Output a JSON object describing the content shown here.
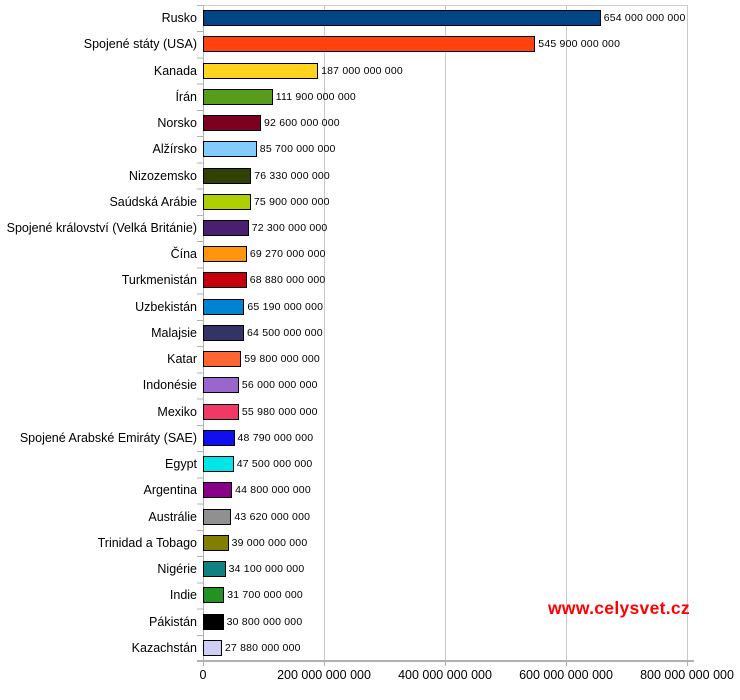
{
  "chart_data": {
    "type": "bar",
    "orientation": "horizontal",
    "title": "",
    "xlabel": "",
    "ylabel": "",
    "grid": true,
    "xlim": [
      0,
      800000000000
    ],
    "x_ticks": [
      "0",
      "200 000 000 000",
      "400 000 000 000",
      "600 000 000 000",
      "800 000 000 000"
    ],
    "categories": [
      "Rusko",
      "Spojené státy (USA)",
      "Kanada",
      "Írán",
      "Norsko",
      "Alžírsko",
      "Nizozemsko",
      "Saúdská Arábie",
      "Spojené království (Velká Británie)",
      "Čína",
      "Turkmenistán",
      "Uzbekistán",
      "Malajsie",
      "Katar",
      "Indonésie",
      "Mexiko",
      "Spojené Arabské Emiráty (SAE)",
      "Egypt",
      "Argentina",
      "Austrálie",
      "Trinidad a Tobago",
      "Nigérie",
      "Indie",
      "Pákistán",
      "Kazachstán"
    ],
    "values": [
      654000000000,
      545900000000,
      187000000000,
      111900000000,
      92600000000,
      85700000000,
      76330000000,
      75900000000,
      72300000000,
      69270000000,
      68880000000,
      65190000000,
      64500000000,
      59800000000,
      56000000000,
      55980000000,
      48790000000,
      47500000000,
      44800000000,
      43620000000,
      39000000000,
      34100000000,
      31700000000,
      30800000000,
      27880000000
    ],
    "value_labels": [
      "654 000 000 000",
      "545 900 000 000",
      "187 000 000 000",
      "111 900 000 000",
      "92 600 000 000",
      "85 700 000 000",
      "76 330 000 000",
      "75 900 000 000",
      "72 300 000 000",
      "69 270 000 000",
      "68 880 000 000",
      "65 190 000 000",
      "64 500 000 000",
      "59 800 000 000",
      "56 000 000 000",
      "55 980 000 000",
      "48 790 000 000",
      "47 500 000 000",
      "44 800 000 000",
      "43 620 000 000",
      "39 000 000 000",
      "34 100 000 000",
      "31 700 000 000",
      "30 800 000 000",
      "27 880 000 000"
    ],
    "bar_colors": [
      "#004586",
      "#FF420E",
      "#FFD320",
      "#579D1C",
      "#7E0021",
      "#83CAFF",
      "#314004",
      "#AECF00",
      "#4B1F6F",
      "#FF950E",
      "#C5000B",
      "#0084D1",
      "#333366",
      "#FF6633",
      "#9966CC",
      "#F03A65",
      "#0F0FEF",
      "#00E6E6",
      "#880088",
      "#909090",
      "#827F00",
      "#108080",
      "#229222",
      "#000000",
      "#CFCFF5"
    ],
    "bar_border_color": "#000000",
    "gridline_color": "#c9c9c9",
    "legend": "none"
  },
  "watermark": {
    "text": "www.celysvet.cz",
    "color": "#FF0000"
  }
}
